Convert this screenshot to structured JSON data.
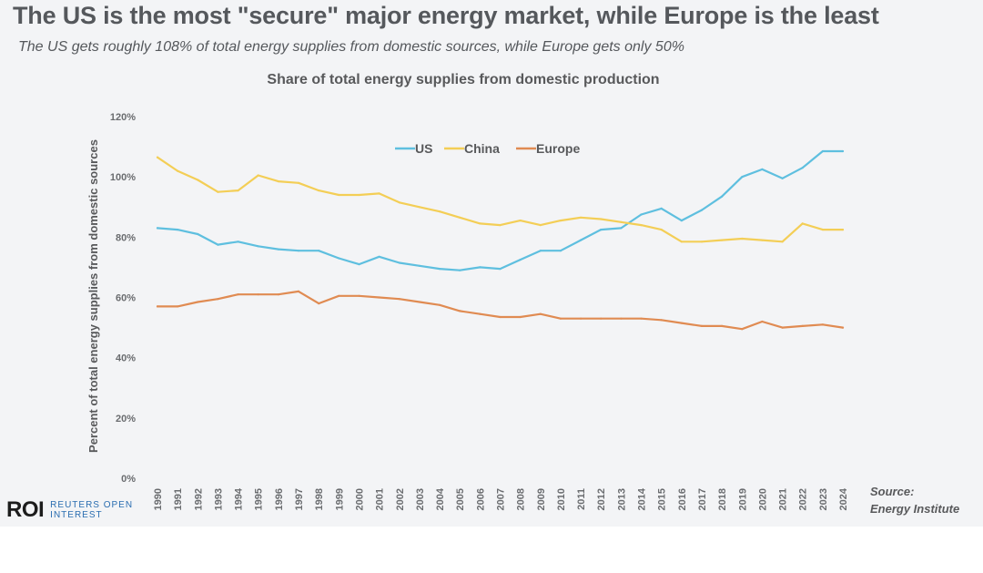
{
  "header": {
    "title": "The US is the most \"secure\" major energy market, while Europe is the least",
    "subtitle": "The US gets roughly 108% of total energy supplies from domestic sources, while Europe gets only 50%"
  },
  "logo": {
    "mark": "ROI",
    "line1": "REUTERS OPEN",
    "line2": "INTEREST"
  },
  "source": {
    "label": "Source:",
    "name": "Energy Institute"
  },
  "chart_data": {
    "type": "line",
    "title": "Share of total energy supplies from domestic production",
    "xlabel": "",
    "ylabel": "Percent of total energy supplies from domestic sources",
    "ylim": [
      0,
      120
    ],
    "yticks": [
      "0%",
      "20%",
      "40%",
      "60%",
      "80%",
      "100%",
      "120%"
    ],
    "grid": false,
    "legend": "top-center",
    "x": [
      "1990",
      "1991",
      "1992",
      "1993",
      "1994",
      "1995",
      "1996",
      "1997",
      "1998",
      "1999",
      "2000",
      "2001",
      "2002",
      "2003",
      "2004",
      "2005",
      "2006",
      "2007",
      "2008",
      "2009",
      "2010",
      "2011",
      "2012",
      "2013",
      "2014",
      "2015",
      "2016",
      "2017",
      "2018",
      "2019",
      "2020",
      "2021",
      "2022",
      "2023",
      "2024"
    ],
    "series": [
      {
        "name": "US",
        "color": "#5ebfdf",
        "values": [
          83,
          82.5,
          81,
          77.5,
          78.5,
          77,
          76,
          75.5,
          75.5,
          73,
          71,
          73.5,
          71.5,
          70.5,
          69.5,
          69,
          70,
          69.5,
          72.5,
          75.5,
          75.5,
          79,
          82.5,
          83,
          87.5,
          89.5,
          85.5,
          89,
          93.5,
          100,
          102.5,
          99.5,
          103,
          108.5,
          108.5
        ]
      },
      {
        "name": "China",
        "color": "#f3ce56",
        "values": [
          106.5,
          102,
          99,
          95,
          95.5,
          100.5,
          98.5,
          98,
          95.5,
          94,
          94,
          94.5,
          91.5,
          90,
          88.5,
          86.5,
          84.5,
          84,
          85.5,
          84,
          85.5,
          86.5,
          86,
          85,
          84,
          82.5,
          78.5,
          78.5,
          79,
          79.5,
          79,
          78.5,
          84.5,
          82.5,
          82.5
        ]
      },
      {
        "name": "Europe",
        "color": "#e08b52",
        "values": [
          57,
          57,
          58.5,
          59.5,
          61,
          61,
          61,
          62,
          58,
          60.5,
          60.5,
          60,
          59.5,
          58.5,
          57.5,
          55.5,
          54.5,
          53.5,
          53.5,
          54.5,
          53,
          53,
          53,
          53,
          53,
          52.5,
          51.5,
          50.5,
          50.5,
          49.5,
          52,
          50,
          50.5,
          51,
          50
        ]
      }
    ]
  }
}
